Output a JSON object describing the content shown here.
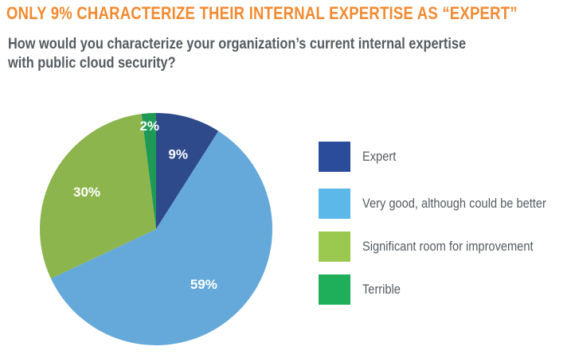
{
  "headline": "ONLY 9% CHARACTERIZE THEIR INTERNAL EXPERTISE AS “EXPERT”",
  "question": {
    "line1": "How would you characterize your organization’s current internal expertise",
    "line2": "with public cloud security?"
  },
  "colors": {
    "headline": "#f28a30",
    "text": "#555b60"
  },
  "chart_data": {
    "type": "pie",
    "title": "",
    "legend_position": "right",
    "slices": [
      {
        "label": "Expert",
        "value": 9,
        "display": "9%",
        "color": "#2e4a8b"
      },
      {
        "label": "Very good, although could be better",
        "value": 59,
        "display": "59%",
        "color": "#64a9d9"
      },
      {
        "label": "Significant room for improvement",
        "value": 30,
        "display": "30%",
        "color": "#8db54e"
      },
      {
        "label": "Terrible",
        "value": 2,
        "display": "2%",
        "color": "#1f9a56"
      }
    ],
    "legend_colors": [
      "#2b4b9b",
      "#5bb8e8",
      "#9bc84e",
      "#1fae5a"
    ]
  }
}
